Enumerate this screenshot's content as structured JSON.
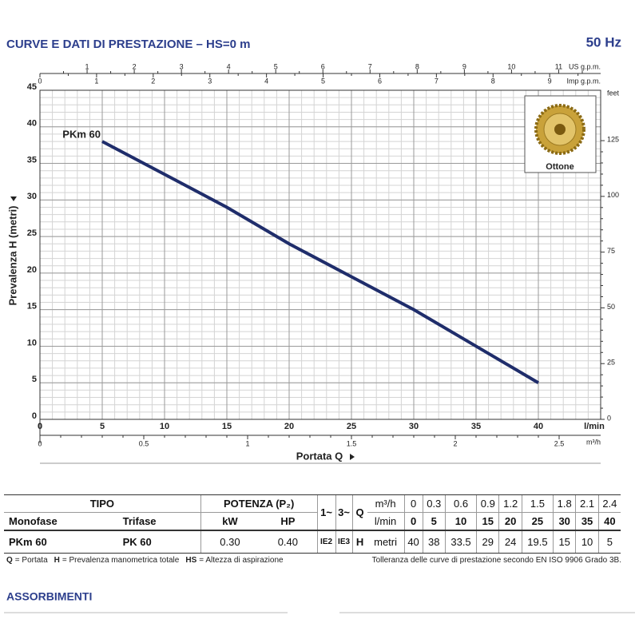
{
  "chart_data": {
    "type": "line",
    "title": "CURVE E DATI DI PRESTAZIONE  –  HS=0 m",
    "frequency": "50 Hz",
    "x_label": "Portata Q",
    "y_label": "Prevalenza H (metri)",
    "x_unit": "l/min",
    "xlim": [
      0,
      45
    ],
    "xticks": [
      0,
      5,
      10,
      15,
      20,
      25,
      30,
      35,
      40
    ],
    "ylim": [
      0,
      45
    ],
    "yticks": [
      0,
      5,
      10,
      15,
      20,
      25,
      30,
      35,
      40,
      45
    ],
    "y2_unit": "feet",
    "y2lim": [
      0,
      147.6
    ],
    "y2ticks": [
      0,
      25,
      50,
      75,
      100,
      125
    ],
    "top_axes": [
      {
        "unit": "US g.p.m.",
        "lim": [
          0,
          11.89
        ],
        "ticks": [
          1,
          2,
          3,
          4,
          5,
          6,
          7,
          8,
          9,
          10,
          11
        ]
      },
      {
        "unit": "Imp g.p.m.",
        "lim": [
          0,
          9.9
        ],
        "ticks": [
          0,
          1,
          2,
          3,
          4,
          5,
          6,
          7,
          8,
          9
        ]
      }
    ],
    "bottom_axis": {
      "unit": "m³/h",
      "lim": [
        0,
        2.7
      ],
      "ticks": [
        0,
        0.5,
        1,
        1.5,
        2,
        2.5
      ]
    },
    "grid": true,
    "inset_label": "Ottone",
    "series": [
      {
        "name": "PKm 60",
        "color": "#1f2d6b",
        "x": [
          5,
          10,
          15,
          20,
          25,
          30,
          35,
          40
        ],
        "values": [
          38,
          33.5,
          29,
          24,
          19.5,
          15,
          10,
          5
        ]
      }
    ]
  },
  "table": {
    "tipo": "TIPO",
    "potenza": "POTENZA (P₂)",
    "phase1": "1~",
    "phase3": "3~",
    "q": "Q",
    "h": "H",
    "monofase": "Monofase",
    "trifase": "Trifase",
    "kw": "kW",
    "hp": "HP",
    "unit_m3h": "m³/h",
    "unit_lmin": "l/min",
    "unit_metri": "metri",
    "q_m3h": [
      "0",
      "0.3",
      "0.6",
      "0.9",
      "1.2",
      "1.5",
      "1.8",
      "2.1",
      "2.4"
    ],
    "q_lmin": [
      "0",
      "5",
      "10",
      "15",
      "20",
      "25",
      "30",
      "35",
      "40"
    ],
    "row": [
      "PKm 60",
      "PK 60",
      "0.30",
      "0.40",
      "IE2",
      "IE3"
    ],
    "h_values": [
      "40",
      "38",
      "33.5",
      "29",
      "24",
      "19.5",
      "15",
      "10",
      "5"
    ]
  },
  "notes": {
    "terms": [
      {
        "term": "Q",
        "definition": "= Portata"
      },
      {
        "term": "H",
        "definition": "= Prevalenza manometrica totale"
      },
      {
        "term": "HS",
        "definition": "= Altezza di aspirazione"
      }
    ],
    "tolerance": "Tolleranza delle curve di prestazione secondo EN ISO 9906 Grado 3B."
  },
  "section": "ASSORBIMENTI"
}
